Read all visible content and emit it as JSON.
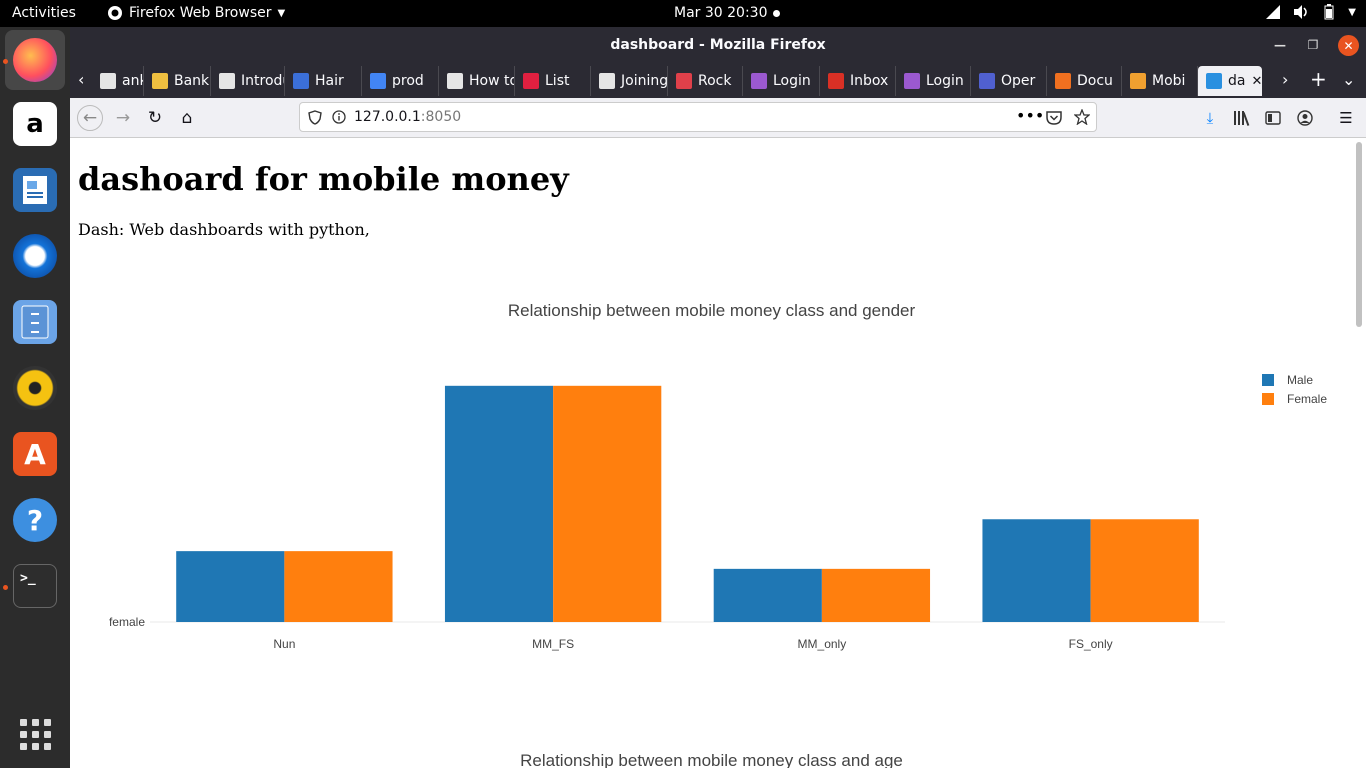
{
  "topbar": {
    "activities": "Activities",
    "app_name": "Firefox Web Browser",
    "clock": "Mar 30  20:30"
  },
  "dock": {
    "items": [
      "firefox-icon",
      "amazon-icon",
      "libreoffice-writer-icon",
      "thunderbird-icon",
      "files-icon",
      "rhythmbox-icon",
      "ubuntu-software-icon",
      "help-icon",
      "terminal-icon"
    ]
  },
  "window": {
    "title": "dashboard - Mozilla Firefox"
  },
  "tabs": [
    {
      "label": "ank",
      "color": "#e5e5e5"
    },
    {
      "label": "Bank",
      "color": "#f0c040"
    },
    {
      "label": "Introduc",
      "color": "#e5e5e5"
    },
    {
      "label": "Hair",
      "color": "#3b6fd8"
    },
    {
      "label": "prod",
      "color": "#4285f4"
    },
    {
      "label": "How to",
      "color": "#e5e5e5"
    },
    {
      "label": "List",
      "color": "#e02040"
    },
    {
      "label": "Joining",
      "color": "#e5e5e5"
    },
    {
      "label": "Rock",
      "color": "#e0404a"
    },
    {
      "label": "Login",
      "color": "#9b59d0"
    },
    {
      "label": "Inbox",
      "color": "#d93025"
    },
    {
      "label": "Login",
      "color": "#9b59d0"
    },
    {
      "label": "Oper",
      "color": "#5060d0"
    },
    {
      "label": "Docu",
      "color": "#f07020"
    },
    {
      "label": "Mobi",
      "color": "#f0a030"
    },
    {
      "label": "da",
      "color": "#2a90e0"
    }
  ],
  "url": {
    "host": "127.0.0.1",
    "port": ":8050"
  },
  "page": {
    "heading": "dashoard for mobile money",
    "subtitle": "Dash: Web dashboards with python,",
    "chart2_title": "Relationship between mobile money class and age"
  },
  "chart_data": {
    "type": "bar",
    "title": "Relationship between mobile money class and gender",
    "categories": [
      "Nun",
      "MM_FS",
      "MM_only",
      "FS_only"
    ],
    "series": [
      {
        "name": "Male",
        "color": "#1f77b4",
        "values": [
          0.3,
          1.0,
          0.225,
          0.435
        ]
      },
      {
        "name": "Female",
        "color": "#ff7f0e",
        "values": [
          0.3,
          1.0,
          0.225,
          0.435
        ]
      }
    ],
    "y_tick_labels": [
      "female"
    ],
    "ylim": [
      0,
      1.05
    ],
    "legend": "top-right",
    "grid": false
  }
}
